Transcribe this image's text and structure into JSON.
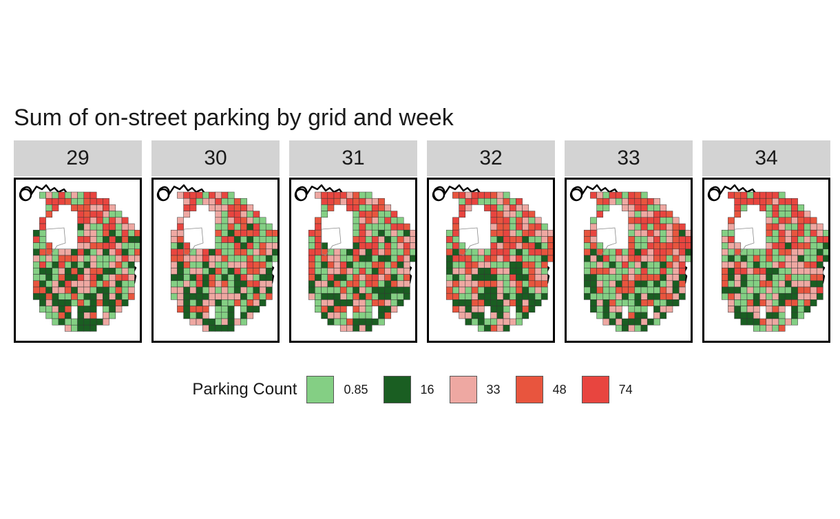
{
  "title": "Sum of on-street parking by grid and week",
  "facets": [
    {
      "label": "29",
      "seed": 29
    },
    {
      "label": "30",
      "seed": 30
    },
    {
      "label": "31",
      "seed": 31
    },
    {
      "label": "32",
      "seed": 32
    },
    {
      "label": "33",
      "seed": 33
    },
    {
      "label": "34",
      "seed": 34
    }
  ],
  "legend": {
    "title": "Parking Count",
    "items": [
      {
        "label": "0.85",
        "color": "#84cf84"
      },
      {
        "label": "16",
        "color": "#1a5e22"
      },
      {
        "label": "33",
        "color": "#eea8a2"
      },
      {
        "label": "48",
        "color": "#e8553e"
      },
      {
        "label": "74",
        "color": "#e8453f"
      }
    ]
  },
  "colors": {
    "strip_bg": "#d3d3d3",
    "panel_border": "#000000",
    "cell_border": "#333333"
  }
}
